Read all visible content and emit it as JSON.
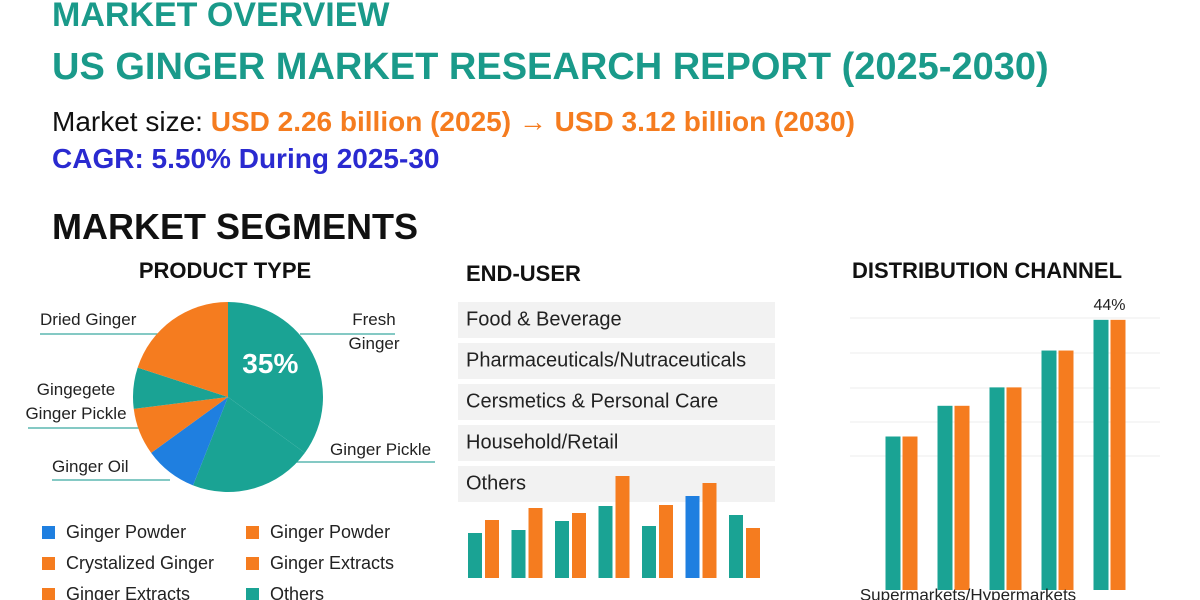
{
  "header": {
    "title": "MARKET OVERVIEW",
    "subtitle": "US GINGER MARKET RESEARCH REPORT (2025-2030)",
    "market_size_label": "Market size:",
    "market_size_value": "USD 2.26 billion (2025) → USD 3.12 billion (2030)",
    "cagr": "CAGR: 5.50% During 2025-30",
    "segments_title": "MARKET SEGMENTS"
  },
  "chart_data": [
    {
      "type": "pie",
      "title": "PRODUCT TYPE",
      "categories": [
        "Fresh Ginger",
        "Ginger Pickle",
        null,
        "Ginger Oil",
        "Gingegete Ginger Pickle",
        "Dried Ginger"
      ],
      "values": [
        35,
        21,
        9,
        8,
        7,
        20
      ],
      "value_labels": [
        "35%",
        null,
        null,
        null,
        null,
        null
      ],
      "colors": [
        "#1aa394",
        "#1aa394",
        "#1f7fe0",
        "#f57c1f",
        "#1aa394",
        "#f57c1f"
      ],
      "legend": [
        {
          "name": "Ginger Powder",
          "color": "#1f7fe0"
        },
        {
          "name": "Ginger Powder",
          "color": "#f57c1f"
        },
        {
          "name": "Crystalized Ginger",
          "color": "#f57c1f"
        },
        {
          "name": "Ginger Extracts",
          "color": "#f57c1f"
        },
        {
          "name": "Ginger Extracts",
          "color": "#f57c1f"
        },
        {
          "name": "Others",
          "color": "#1aa394"
        }
      ]
    },
    {
      "type": "bar",
      "title": "END-USER",
      "list": [
        "Food & Beverage",
        "Pharmaceuticals/Nutraceuticals",
        "Cersmetics & Personal Care",
        "Household/Retail",
        "Others"
      ],
      "categories": [
        null,
        null,
        null,
        null,
        null,
        null,
        null
      ],
      "series": [
        {
          "color": "#1aa394",
          "colors": [
            "#1aa394",
            "#1aa394",
            "#1aa394",
            "#1aa394",
            "#1aa394",
            "#1f7fe0",
            "#1aa394"
          ],
          "values": [
            45,
            48,
            57,
            72,
            52,
            82,
            63
          ]
        },
        {
          "color": "#f57c1f",
          "values": [
            58,
            70,
            65,
            102,
            73,
            95,
            50
          ]
        }
      ],
      "ylim": [
        0,
        110
      ]
    },
    {
      "type": "bar",
      "title": "DISTRIBUTION CHANNEL",
      "x_label": "Supermarkets/Hypermarkets",
      "categories": [
        null,
        null,
        null,
        null,
        null
      ],
      "series": [
        {
          "color": "#1aa394",
          "values": [
            25,
            30,
            33,
            39,
            44
          ]
        },
        {
          "color": "#f57c1f",
          "values": [
            25,
            30,
            33,
            39,
            44
          ],
          "value_labels": [
            null,
            null,
            null,
            null,
            "44%"
          ]
        }
      ],
      "ylim": [
        0,
        50
      ]
    }
  ]
}
